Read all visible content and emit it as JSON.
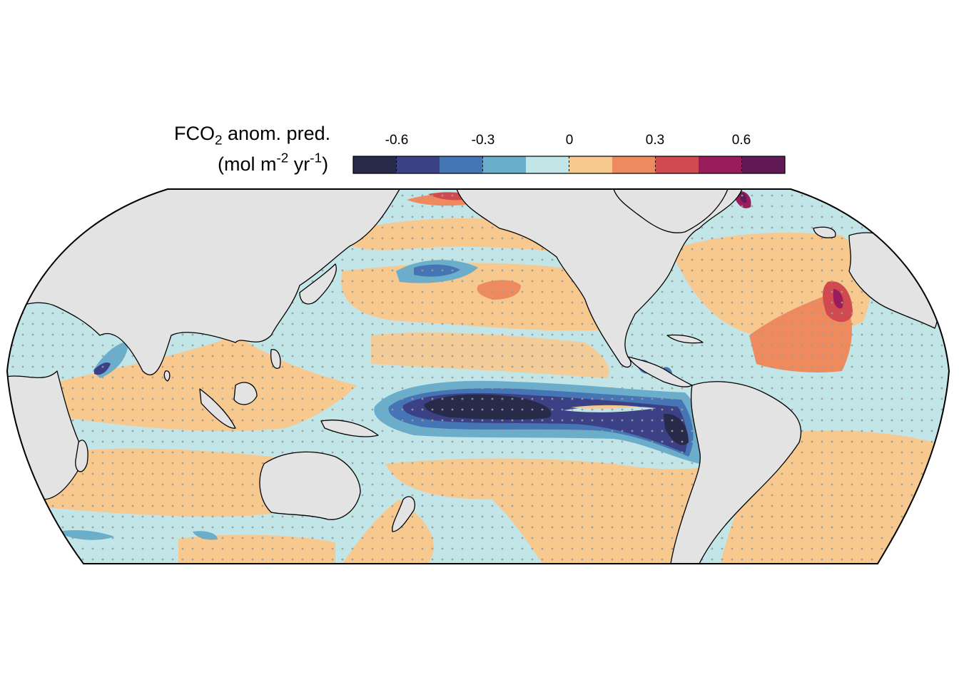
{
  "legend": {
    "title_prefix": "FCO",
    "title_subscript": "2",
    "title_suffix": " anom. pred.",
    "units_open": "(mol m",
    "units_exp1": "-2",
    "units_mid": " yr",
    "units_exp2": "-1",
    "units_close": ")",
    "tick_labels": [
      "-0.6",
      "-0.3",
      "0",
      "0.3",
      "0.6"
    ],
    "tick_values": [
      -0.6,
      -0.3,
      0,
      0.3,
      0.6
    ],
    "bins": [
      -0.75,
      -0.6,
      -0.45,
      -0.3,
      -0.15,
      0,
      0.15,
      0.3,
      0.45,
      0.6,
      0.75
    ],
    "colors": [
      "#282a4a",
      "#3c4186",
      "#4575b4",
      "#6aaecb",
      "#c2e5e8",
      "#f8c98f",
      "#ee8b5e",
      "#d04a4f",
      "#9a1c5c",
      "#621a56"
    ]
  },
  "map": {
    "projection": "Robinson (Pacific-centred)",
    "land_color": "#e3e3e3",
    "coast_color": "#000000",
    "stipple_color": "#9b9b9b",
    "features": [
      {
        "name": "tropical-pacific-negative-tongue",
        "value": -0.75
      },
      {
        "name": "peru-upwelling-negative",
        "value": -0.75
      },
      {
        "name": "central-america-negative",
        "value": -0.45
      },
      {
        "name": "arabian-sea-negative",
        "value": -0.45
      },
      {
        "name": "kuroshio-extension-negative",
        "value": -0.3
      },
      {
        "name": "north-atlantic-positive",
        "value": 0.3
      },
      {
        "name": "western-europe-positive",
        "value": 0.45
      },
      {
        "name": "greenland-sea-positive",
        "value": 0.6
      },
      {
        "name": "chukchi-sea-positive",
        "value": 0.45
      },
      {
        "name": "north-pacific-positive",
        "value": 0.3
      }
    ]
  }
}
